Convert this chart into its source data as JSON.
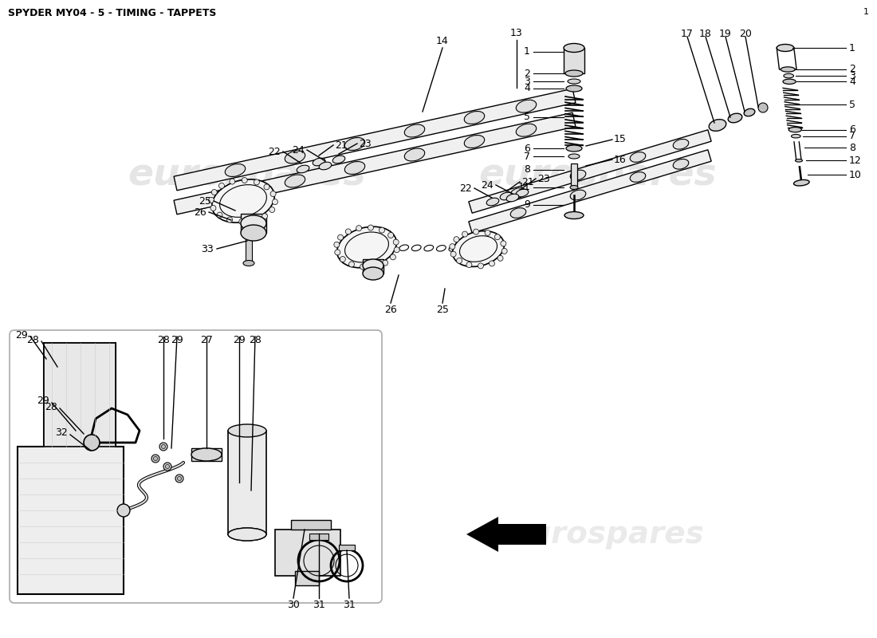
{
  "title": "SPYDER MY04 - 5 - TIMING - TAPPETS",
  "background_color": "#ffffff",
  "title_fontsize": 9,
  "watermark_text": "eurospares",
  "watermark_color": "#cccccc",
  "page_number": "1",
  "line_color": "#000000",
  "text_color": "#000000"
}
